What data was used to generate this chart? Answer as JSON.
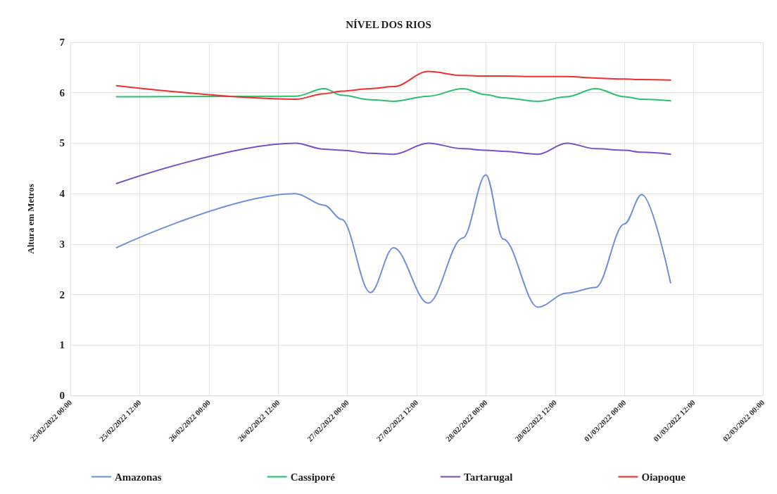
{
  "chart_data": {
    "type": "line",
    "title": "NÍVEL DOS RIOS",
    "ylabel": "Altura em Metros",
    "x": [
      "2022-02-25T08:00",
      "2022-02-26T15:00",
      "2022-02-26T20:00",
      "2022-02-26T23:00",
      "2022-02-27T04:00",
      "2022-02-27T08:00",
      "2022-02-27T14:00",
      "2022-02-27T20:00",
      "2022-02-28T00:00",
      "2022-02-28T03:00",
      "2022-02-28T09:00",
      "2022-02-28T14:00",
      "2022-02-28T19:00",
      "2022-03-01T00:00",
      "2022-03-01T03:00",
      "2022-03-01T08:00"
    ],
    "series": [
      {
        "name": "Amazonas",
        "color": "#6f8fdc",
        "values": [
          2.93,
          4.0,
          3.77,
          3.49,
          2.04,
          2.93,
          1.83,
          3.12,
          4.37,
          3.1,
          1.75,
          2.03,
          2.14,
          3.4,
          3.98,
          2.23
        ]
      },
      {
        "name": "Cassiporé",
        "color": "#2fbf71",
        "values": [
          5.92,
          5.93,
          6.08,
          5.95,
          5.86,
          5.83,
          5.93,
          6.08,
          5.96,
          5.9,
          5.83,
          5.92,
          6.08,
          5.92,
          5.87,
          5.84
        ]
      },
      {
        "name": "Tartarugal",
        "color": "#7b4fc9",
        "values": [
          4.2,
          5.0,
          4.88,
          4.86,
          4.8,
          4.78,
          5.0,
          4.89,
          4.86,
          4.84,
          4.78,
          5.0,
          4.89,
          4.86,
          4.82,
          4.78
        ]
      },
      {
        "name": "Oiapoque",
        "color": "#f0302f",
        "values": [
          6.14,
          5.87,
          5.98,
          6.03,
          6.08,
          6.12,
          6.42,
          6.34,
          6.33,
          6.33,
          6.32,
          6.32,
          6.29,
          6.27,
          6.26,
          6.25
        ]
      }
    ],
    "xlim": [
      "2022-02-25T00:00",
      "2022-03-02T00:00"
    ],
    "xticks": [
      {
        "value": "2022-02-25T00:00",
        "label": "25/02/2022 00:00"
      },
      {
        "value": "2022-02-25T12:00",
        "label": "25/02/2022 12:00"
      },
      {
        "value": "2022-02-26T00:00",
        "label": "26/02/2022 00:00"
      },
      {
        "value": "2022-02-26T12:00",
        "label": "26/02/2022 12:00"
      },
      {
        "value": "2022-02-27T00:00",
        "label": "27/02/2022 00:00"
      },
      {
        "value": "2022-02-27T12:00",
        "label": "27/02/2022 12:00"
      },
      {
        "value": "2022-02-28T00:00",
        "label": "28/02/2022 00:00"
      },
      {
        "value": "2022-02-28T12:00",
        "label": "28/02/2022 12:00"
      },
      {
        "value": "2022-03-01T00:00",
        "label": "01/03/2022 00:00"
      },
      {
        "value": "2022-03-01T12:00",
        "label": "01/03/2022 12:00"
      },
      {
        "value": "2022-03-02T00:00",
        "label": "02/03/2022 00:00"
      }
    ],
    "ylim": [
      0,
      7
    ],
    "yticks": [
      0,
      1,
      2,
      3,
      4,
      5,
      6,
      7
    ],
    "grid": true,
    "legend": "bottom",
    "marker": "none",
    "line_style": "solid"
  }
}
